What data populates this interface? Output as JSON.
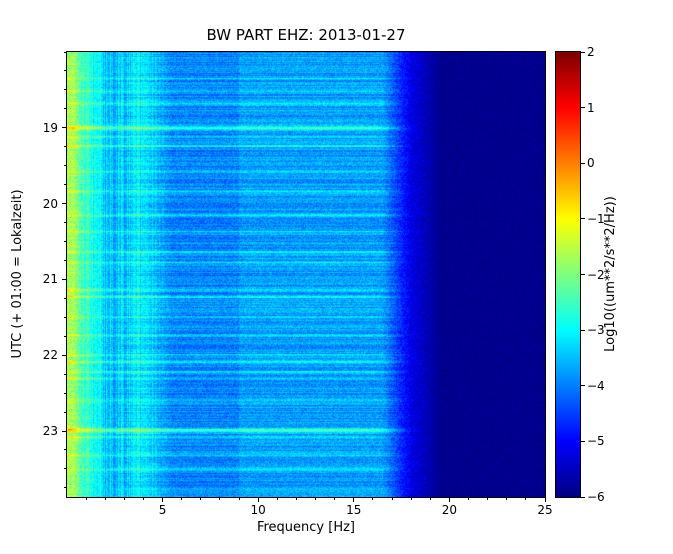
{
  "chart_data": {
    "type": "heatmap",
    "subtype": "spectrogram",
    "title": "BW PART EHZ: 2013-01-27",
    "xlabel": "Frequency [Hz]",
    "ylabel": "UTC (+ 01:00 = Lokalzeit)",
    "x_range": [
      0,
      25
    ],
    "x_ticks": [
      5,
      10,
      15,
      20,
      25
    ],
    "x_minor_step": 1,
    "y_range": [
      18.0,
      23.87
    ],
    "y_axis_note": "time in hours UTC, increasing downward",
    "y_ticks": [
      19,
      20,
      21,
      22,
      23
    ],
    "y_tick_labels": [
      "19",
      "20",
      "21",
      "22",
      "23"
    ],
    "y_minor_step": 0.25,
    "grid": "off",
    "colorbar": {
      "label": "Log10((um**2/s**2/Hz))",
      "range": [
        -6,
        2
      ],
      "tick_values": [
        2,
        1,
        0,
        -1,
        -2,
        -3,
        -4,
        -5,
        -6
      ],
      "tick_labels": [
        "2",
        "1",
        "0",
        "−1",
        "−2",
        "−3",
        "−4",
        "−5",
        "−6"
      ],
      "colormap": "jet",
      "position": "right"
    },
    "spectrum": {
      "description": "Approximate background power level Log10((um**2/s**2)/Hz) versus frequency band; each band is [f_start_hz, f_end_hz, level_at_start, level_at_end], linearly interpolated. Strong microseism energy below 1 Hz (green/cyan), moderate blue 1-17 Hz, very low dark-navy energy above ~19 Hz.",
      "bands": [
        [
          0.0,
          0.35,
          -1.7,
          -1.7
        ],
        [
          0.35,
          0.9,
          -1.7,
          -2.7
        ],
        [
          0.9,
          2.2,
          -2.7,
          -3.45
        ],
        [
          2.2,
          3.4,
          -3.45,
          -3.45
        ],
        [
          3.4,
          4.3,
          -3.3,
          -3.3
        ],
        [
          4.3,
          5.5,
          -3.3,
          -3.95
        ],
        [
          5.5,
          9.0,
          -3.95,
          -3.95
        ],
        [
          9.0,
          16.5,
          -3.75,
          -3.75
        ],
        [
          16.5,
          18.0,
          -3.75,
          -5.2
        ],
        [
          18.0,
          19.5,
          -5.2,
          -5.85
        ],
        [
          19.5,
          25.0,
          -5.88,
          -5.88
        ]
      ]
    },
    "events": {
      "description": "Horizontal bright streaks (transient seismic events) as [time_hours_utc, boost_in_log10_units], spanning roughly 0-18 Hz",
      "list": [
        [
          18.35,
          0.45
        ],
        [
          18.52,
          0.5
        ],
        [
          18.68,
          0.55
        ],
        [
          19.0,
          1.25
        ],
        [
          19.12,
          0.7
        ],
        [
          19.24,
          0.85
        ],
        [
          19.58,
          0.5
        ],
        [
          19.84,
          0.45
        ],
        [
          20.16,
          0.6
        ],
        [
          20.37,
          0.5
        ],
        [
          20.64,
          0.55
        ],
        [
          20.78,
          0.5
        ],
        [
          21.14,
          0.8
        ],
        [
          21.23,
          0.9
        ],
        [
          21.5,
          0.4
        ],
        [
          21.74,
          0.5
        ],
        [
          22.0,
          0.6
        ],
        [
          22.09,
          0.85
        ],
        [
          22.22,
          0.7
        ],
        [
          22.31,
          0.65
        ],
        [
          22.6,
          0.45
        ],
        [
          22.99,
          1.3
        ],
        [
          23.08,
          0.8
        ],
        [
          23.32,
          0.5
        ],
        [
          23.51,
          0.45
        ]
      ]
    }
  }
}
